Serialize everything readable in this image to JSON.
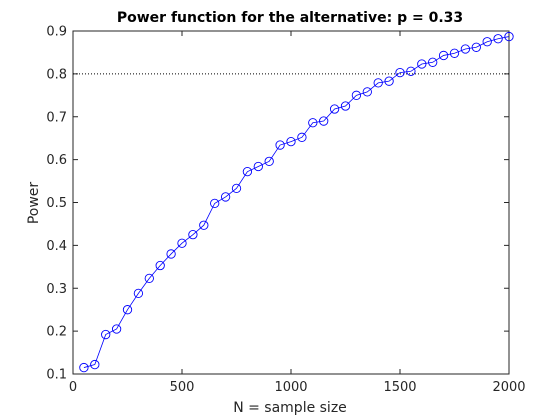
{
  "chart_data": {
    "type": "line",
    "title": "Power function for the alternative: p = 0.33",
    "xlabel": "N = sample size",
    "ylabel": "Power",
    "xlim": [
      0,
      2000
    ],
    "ylim": [
      0.1,
      0.9
    ],
    "xticks": [
      0,
      500,
      1000,
      1500,
      2000
    ],
    "yticks": [
      0.1,
      0.2,
      0.3,
      0.4,
      0.5,
      0.6,
      0.7,
      0.8,
      0.9
    ],
    "xtick_labels": [
      "0",
      "500",
      "1000",
      "1500",
      "2000"
    ],
    "ytick_labels": [
      "0.1",
      "0.2",
      "0.3",
      "0.4",
      "0.5",
      "0.6",
      "0.7",
      "0.8",
      "0.9"
    ],
    "reference_line": {
      "y": 0.8,
      "style": "dotted",
      "color": "#000000"
    },
    "grid": false,
    "series": [
      {
        "marker": "circle",
        "color": "#0000ff",
        "x": [
          50,
          100,
          150,
          200,
          250,
          300,
          350,
          400,
          450,
          500,
          550,
          600,
          650,
          700,
          750,
          800,
          850,
          900,
          950,
          1000,
          1050,
          1100,
          1150,
          1200,
          1250,
          1300,
          1350,
          1400,
          1450,
          1500,
          1550,
          1600,
          1650,
          1700,
          1750,
          1800,
          1850,
          1900,
          1950,
          2000
        ],
        "y": [
          0.115,
          0.122,
          0.192,
          0.205,
          0.25,
          0.288,
          0.323,
          0.353,
          0.38,
          0.405,
          0.425,
          0.447,
          0.498,
          0.513,
          0.533,
          0.572,
          0.584,
          0.596,
          0.634,
          0.642,
          0.652,
          0.686,
          0.69,
          0.718,
          0.725,
          0.75,
          0.758,
          0.779,
          0.783,
          0.803,
          0.806,
          0.823,
          0.827,
          0.843,
          0.848,
          0.858,
          0.862,
          0.875,
          0.882,
          0.887
        ]
      }
    ]
  }
}
